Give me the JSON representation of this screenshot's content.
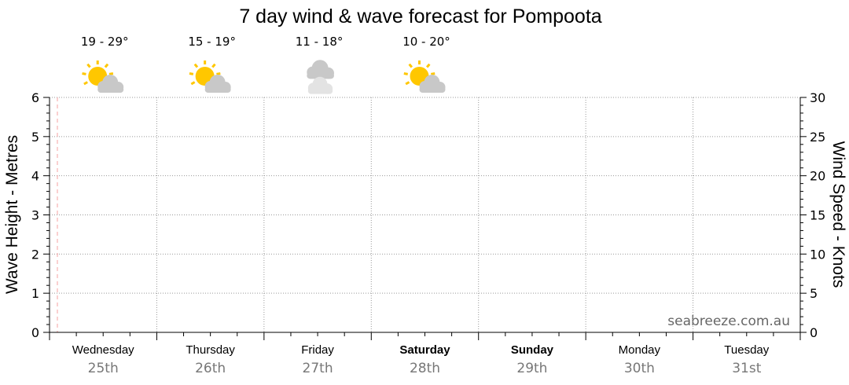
{
  "chart_data": {
    "type": "line",
    "title": "7 day wind & wave forecast for Pompoota",
    "ylabel": "Wave Height - Metres",
    "y2label": "Wind Speed - Knots",
    "ylim": [
      0,
      6
    ],
    "y2lim": [
      0,
      30
    ],
    "yticks": [
      "0",
      "1",
      "2",
      "3",
      "4",
      "5",
      "6"
    ],
    "y2ticks": [
      "0",
      "5",
      "10",
      "15",
      "20",
      "25",
      "30"
    ],
    "grid": true,
    "days": [
      {
        "name": "Wednesday",
        "date": "25th",
        "bold": false
      },
      {
        "name": "Thursday",
        "date": "26th",
        "bold": false
      },
      {
        "name": "Friday",
        "date": "27th",
        "bold": false
      },
      {
        "name": "Saturday",
        "date": "28th",
        "bold": true
      },
      {
        "name": "Sunday",
        "date": "29th",
        "bold": true
      },
      {
        "name": "Monday",
        "date": "30th",
        "bold": false
      },
      {
        "name": "Tuesday",
        "date": "31st",
        "bold": false
      }
    ],
    "forecast": [
      {
        "temp": "19 - 29°",
        "icon": "partly-cloudy-icon"
      },
      {
        "temp": "15 - 19°",
        "icon": "partly-cloudy-icon"
      },
      {
        "temp": "11 - 18°",
        "icon": "cloudy-icon"
      },
      {
        "temp": "10 - 20°",
        "icon": "partly-cloudy-icon"
      }
    ],
    "series": [],
    "watermark": "seabreeze.com.au",
    "colors": {
      "sun": "#ffc700",
      "cloud": "#c8c8c8",
      "cloud_light": "#e3e3e3",
      "now_line": "#f4a0a0",
      "date": "#777777"
    }
  }
}
